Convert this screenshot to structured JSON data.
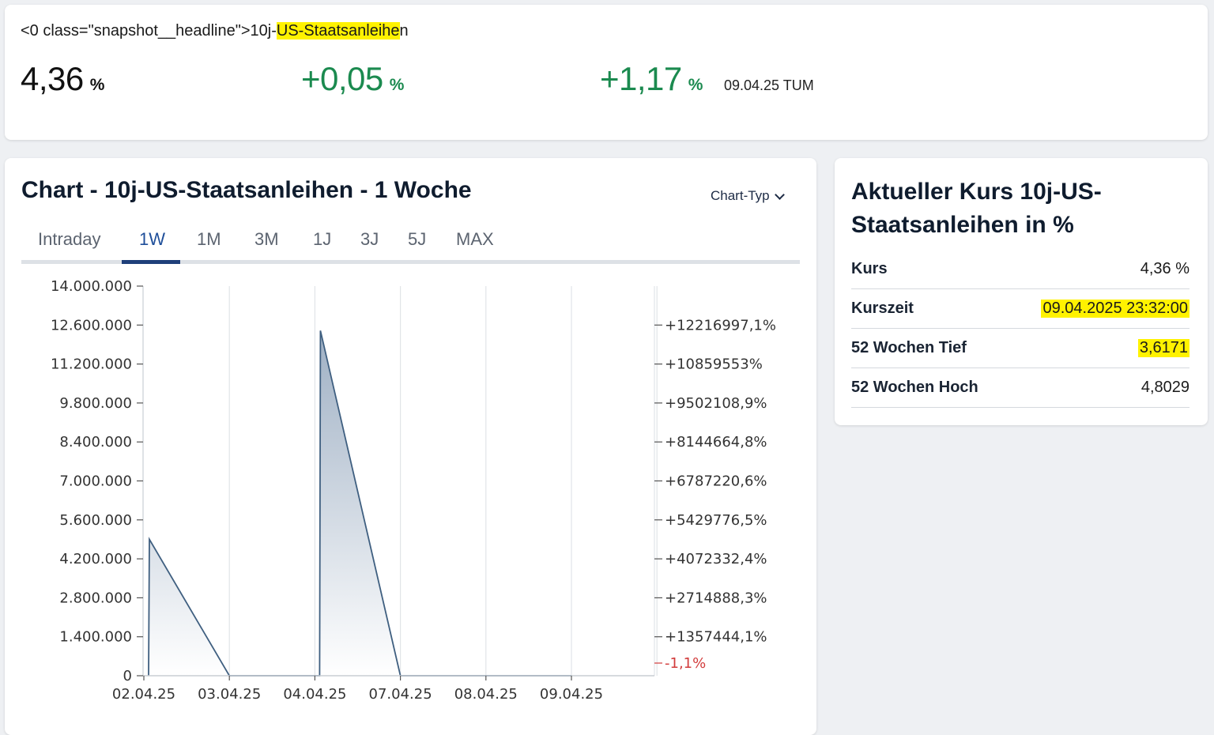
{
  "snapshot": {
    "headline_prefix": "<0 class=\"snapshot__headline\">10j-",
    "headline_highlight": "US-Staatsanleihe",
    "headline_suffix": "n",
    "price": "4,36",
    "price_unit": "%",
    "change": "+0,05",
    "change_unit": "%",
    "change_pct": "+1,17",
    "change_pct_unit": "%",
    "timestamp": "09.04.25 TUM",
    "colors": {
      "positive": "#1b8a4f",
      "highlight": "#fff200"
    }
  },
  "chart_card": {
    "title": "Chart - 10j-US-Staatsanleihen - 1 Woche",
    "chart_type_label": "Chart-Typ",
    "tabs": [
      {
        "label": "Intraday",
        "active": false
      },
      {
        "label": "1W",
        "active": true
      },
      {
        "label": "1M",
        "active": false
      },
      {
        "label": "3M",
        "active": false
      },
      {
        "label": "1J",
        "active": false
      },
      {
        "label": "3J",
        "active": false
      },
      {
        "label": "5J",
        "active": false
      },
      {
        "label": "MAX",
        "active": false
      }
    ]
  },
  "chart_data": {
    "type": "area",
    "title": "",
    "xlabel": "",
    "ylabel": "",
    "x_ticks": [
      "02.04.25",
      "03.04.25",
      "04.04.25",
      "07.04.25",
      "08.04.25",
      "09.04.25"
    ],
    "y_ticks": [
      "0",
      "1.400.000",
      "2.800.000",
      "4.200.000",
      "5.600.000",
      "7.000.000",
      "8.400.000",
      "9.800.000",
      "11.200.000",
      "12.600.000",
      "14.000.000"
    ],
    "y_right_ticks": [
      "-1,1%",
      "+1357444,1%",
      "+2714888,3%",
      "+4072332,4%",
      "+5429776,5%",
      "+6787220,6%",
      "+8144664,8%",
      "+9502108,9%",
      "+10859553%",
      "+12216997,1%"
    ],
    "ylim": [
      0,
      14000000
    ],
    "grid": true,
    "series": [
      {
        "points": [
          {
            "x": "02.04.25",
            "y": 0
          },
          {
            "x": "02.04.25",
            "y": 4900000
          },
          {
            "x": "03.04.25",
            "y": 0
          },
          {
            "x": "04.04.25",
            "y": 0
          },
          {
            "x": "04.04.25",
            "y": 12400000
          },
          {
            "x": "07.04.25",
            "y": 0
          },
          {
            "x": "09.04.25",
            "y": 0
          }
        ]
      }
    ],
    "colors": {
      "line": "#3f5f80",
      "fill_top": "#9fb0c4",
      "fill_bottom": "#ffffff",
      "negative_tick": "#d23c3c",
      "grid": "#e1e4e8",
      "axis": "#c9ced4"
    }
  },
  "quote_card": {
    "title": "Aktueller Kurs 10j-US-Staatsanleihen in %",
    "rows": [
      {
        "label": "Kurs",
        "value": "4,36 %",
        "highlighted": false
      },
      {
        "label": "Kurszeit",
        "value": "09.04.2025 23:32:00",
        "highlighted": true
      },
      {
        "label": "52 Wochen Tief",
        "value": "3,6171",
        "highlighted": true
      },
      {
        "label": "52 Wochen Hoch",
        "value": "4,8029",
        "highlighted": false
      }
    ]
  }
}
